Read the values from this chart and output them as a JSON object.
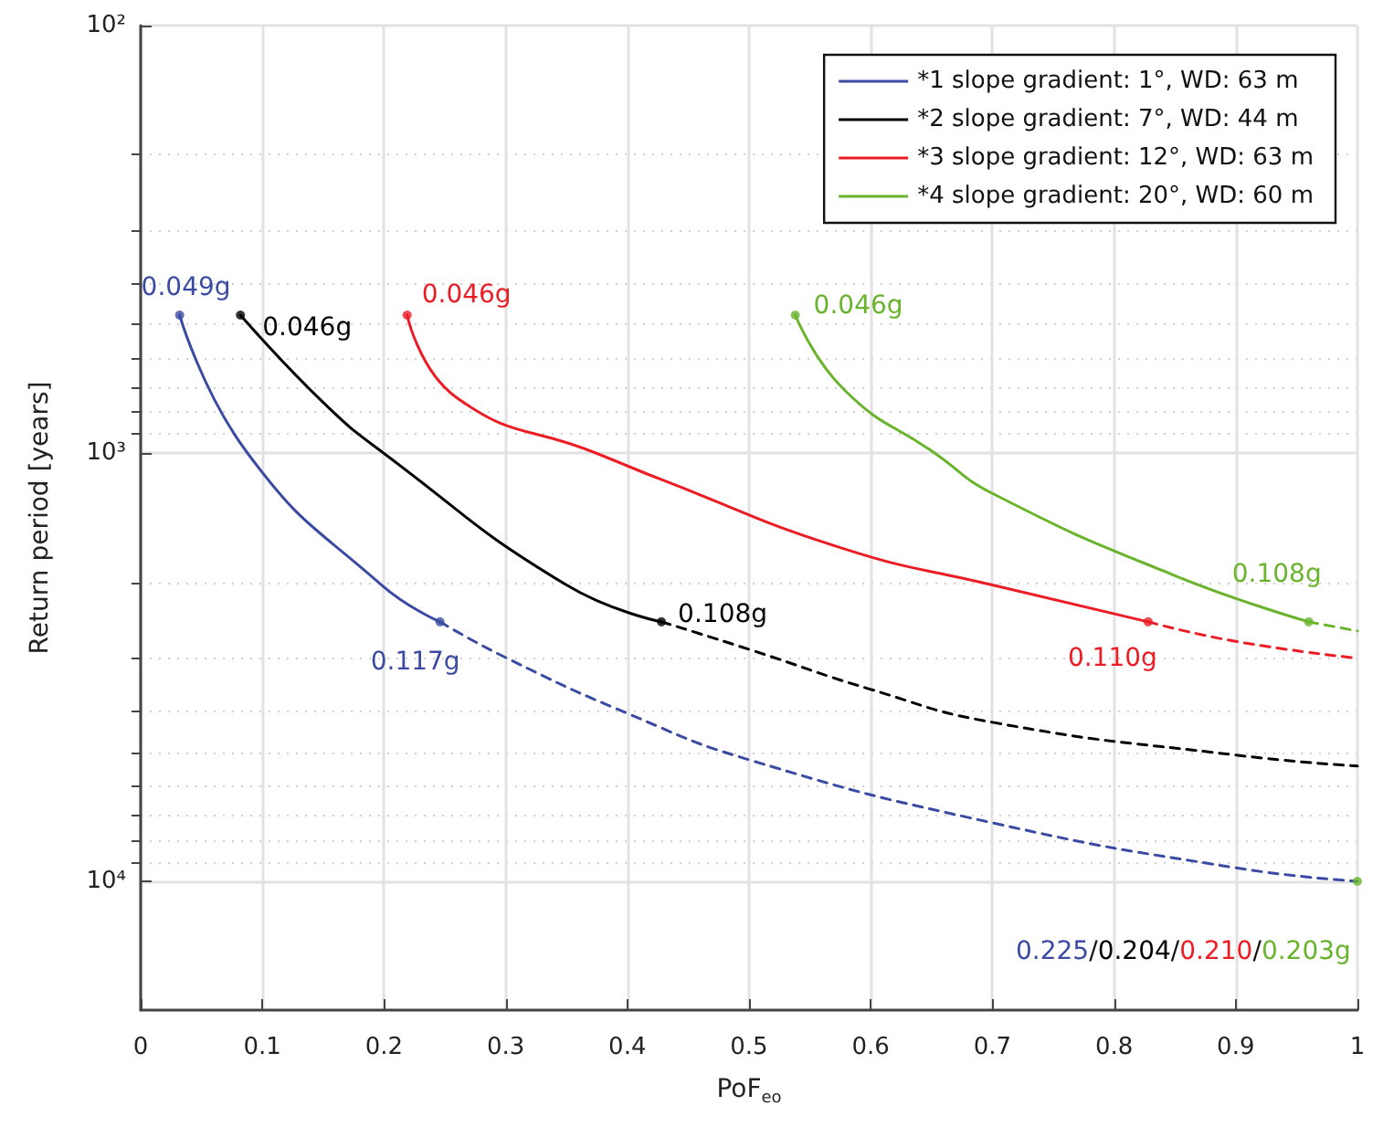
{
  "chart_data": {
    "type": "line",
    "xlabel": "PoF$_{eo}$",
    "ylabel": "Return period [years]",
    "xlim": [
      0,
      1
    ],
    "xticks": [
      0,
      0.1,
      0.2,
      0.3,
      0.4,
      0.5,
      0.6,
      0.7,
      0.8,
      0.9,
      1
    ],
    "ylim": [
      20000,
      100
    ],
    "log": "y",
    "yticks": [
      {
        "value": 100,
        "label": "10²"
      },
      {
        "value": 200,
        "label": null
      },
      {
        "value": 300,
        "label": null
      },
      {
        "value": 400,
        "label": null
      },
      {
        "value": 500,
        "label": null
      },
      {
        "value": 600,
        "label": null
      },
      {
        "value": 700,
        "label": null
      },
      {
        "value": 800,
        "label": null
      },
      {
        "value": 900,
        "label": null
      },
      {
        "value": 1000,
        "label": "10³"
      },
      {
        "value": 2000,
        "label": null
      },
      {
        "value": 3000,
        "label": null
      },
      {
        "value": 4000,
        "label": null
      },
      {
        "value": 5000,
        "label": null
      },
      {
        "value": 6000,
        "label": null
      },
      {
        "value": 7000,
        "label": null
      },
      {
        "value": 8000,
        "label": null
      },
      {
        "value": 9000,
        "label": null
      },
      {
        "value": 10000,
        "label": "10⁴"
      }
    ],
    "grid": true,
    "legend": "top right",
    "marker": "none",
    "series": [
      {
        "name": "*1 slope gradient: 1°, WD: 63 m",
        "color": "#3b4ba3",
        "line_style": "solid",
        "x": [
          0.032,
          0.088,
          0.198,
          0.246
        ],
        "values": [
          475,
          1000,
          2030,
          2475
        ]
      },
      {
        "name": "*2 slope gradient: 7°, WD: 44 m",
        "color": "#000000",
        "line_style": "solid",
        "x": [
          0.082,
          0.15,
          0.2,
          0.35,
          0.428
        ],
        "values": [
          475,
          760,
          1000,
          2030,
          2475
        ]
      },
      {
        "name": "*3 slope gradient: 12°, WD: 63 m",
        "color": "#ec1c24",
        "line_style": "solid",
        "x": [
          0.219,
          0.259,
          0.375,
          0.431,
          0.578,
          0.7,
          0.828
        ],
        "values": [
          475,
          738,
          1000,
          1160,
          1670,
          2030,
          2475
        ]
      },
      {
        "name": "*4 slope gradient: 20°, WD: 60 m",
        "color": "#6ab42d",
        "line_style": "solid",
        "x": [
          0.538,
          0.578,
          0.653,
          0.7,
          0.85,
          0.96
        ],
        "values": [
          475,
          709,
          1000,
          1240,
          1930,
          2475
        ]
      },
      {
        "color": "#3b4ba3",
        "line_style": "dashed",
        "x": [
          0.246,
          0.3,
          0.4,
          0.5,
          0.7,
          0.9,
          1
        ],
        "values": [
          2475,
          3000,
          4050,
          5200,
          7300,
          9300,
          10000
        ]
      },
      {
        "color": "#000000",
        "line_style": "dashed",
        "x": [
          0.428,
          0.5,
          0.6,
          0.7,
          0.9,
          1
        ],
        "values": [
          2475,
          2870,
          3560,
          4250,
          5070,
          5380
        ]
      },
      {
        "color": "#ec1c24",
        "line_style": "dashed",
        "x": [
          0.828,
          0.9,
          1
        ],
        "values": [
          2475,
          2750,
          3010
        ]
      },
      {
        "color": "#6ab42d",
        "line_style": "dashed",
        "x": [
          0.96,
          1
        ],
        "values": [
          2475,
          2600
        ]
      },
      {
        "type": "scatter",
        "color": "#3b4ba3",
        "marker": "circle",
        "x": [
          0.032,
          0.246
        ],
        "values": [
          475,
          2475
        ]
      },
      {
        "type": "scatter",
        "color": "#000000",
        "marker": "circle",
        "x": [
          0.082,
          0.428
        ],
        "values": [
          475,
          2475
        ]
      },
      {
        "type": "scatter",
        "color": "#ec1c24",
        "marker": "circle",
        "x": [
          0.219,
          0.828
        ],
        "values": [
          475,
          2475
        ]
      },
      {
        "type": "scatter",
        "color": "#6ab42d",
        "marker": "circle",
        "x": [
          0.538,
          0.96,
          1
        ],
        "values": [
          475,
          2475,
          10000
        ]
      }
    ],
    "annotations": [
      {
        "text": "0.049g",
        "x": 0.032,
        "y": 475
      },
      {
        "text": "0.046g",
        "x": 0.082,
        "y": 475
      },
      {
        "text": "0.046g",
        "x": 0.219,
        "y": 475
      },
      {
        "text": "0.046g",
        "x": 0.538,
        "y": 475
      },
      {
        "text": "0.117g",
        "x": 0.246,
        "y": 2475
      },
      {
        "text": "0.108g",
        "x": 0.428,
        "y": 2475
      },
      {
        "text": "0.110g",
        "x": 0.828,
        "y": 2475
      },
      {
        "text": "0.108g",
        "x": 0.96,
        "y": 2475
      },
      {
        "text": "0.225/0.204/0.210/0.203g",
        "x": 1,
        "y": 10000
      }
    ]
  }
}
